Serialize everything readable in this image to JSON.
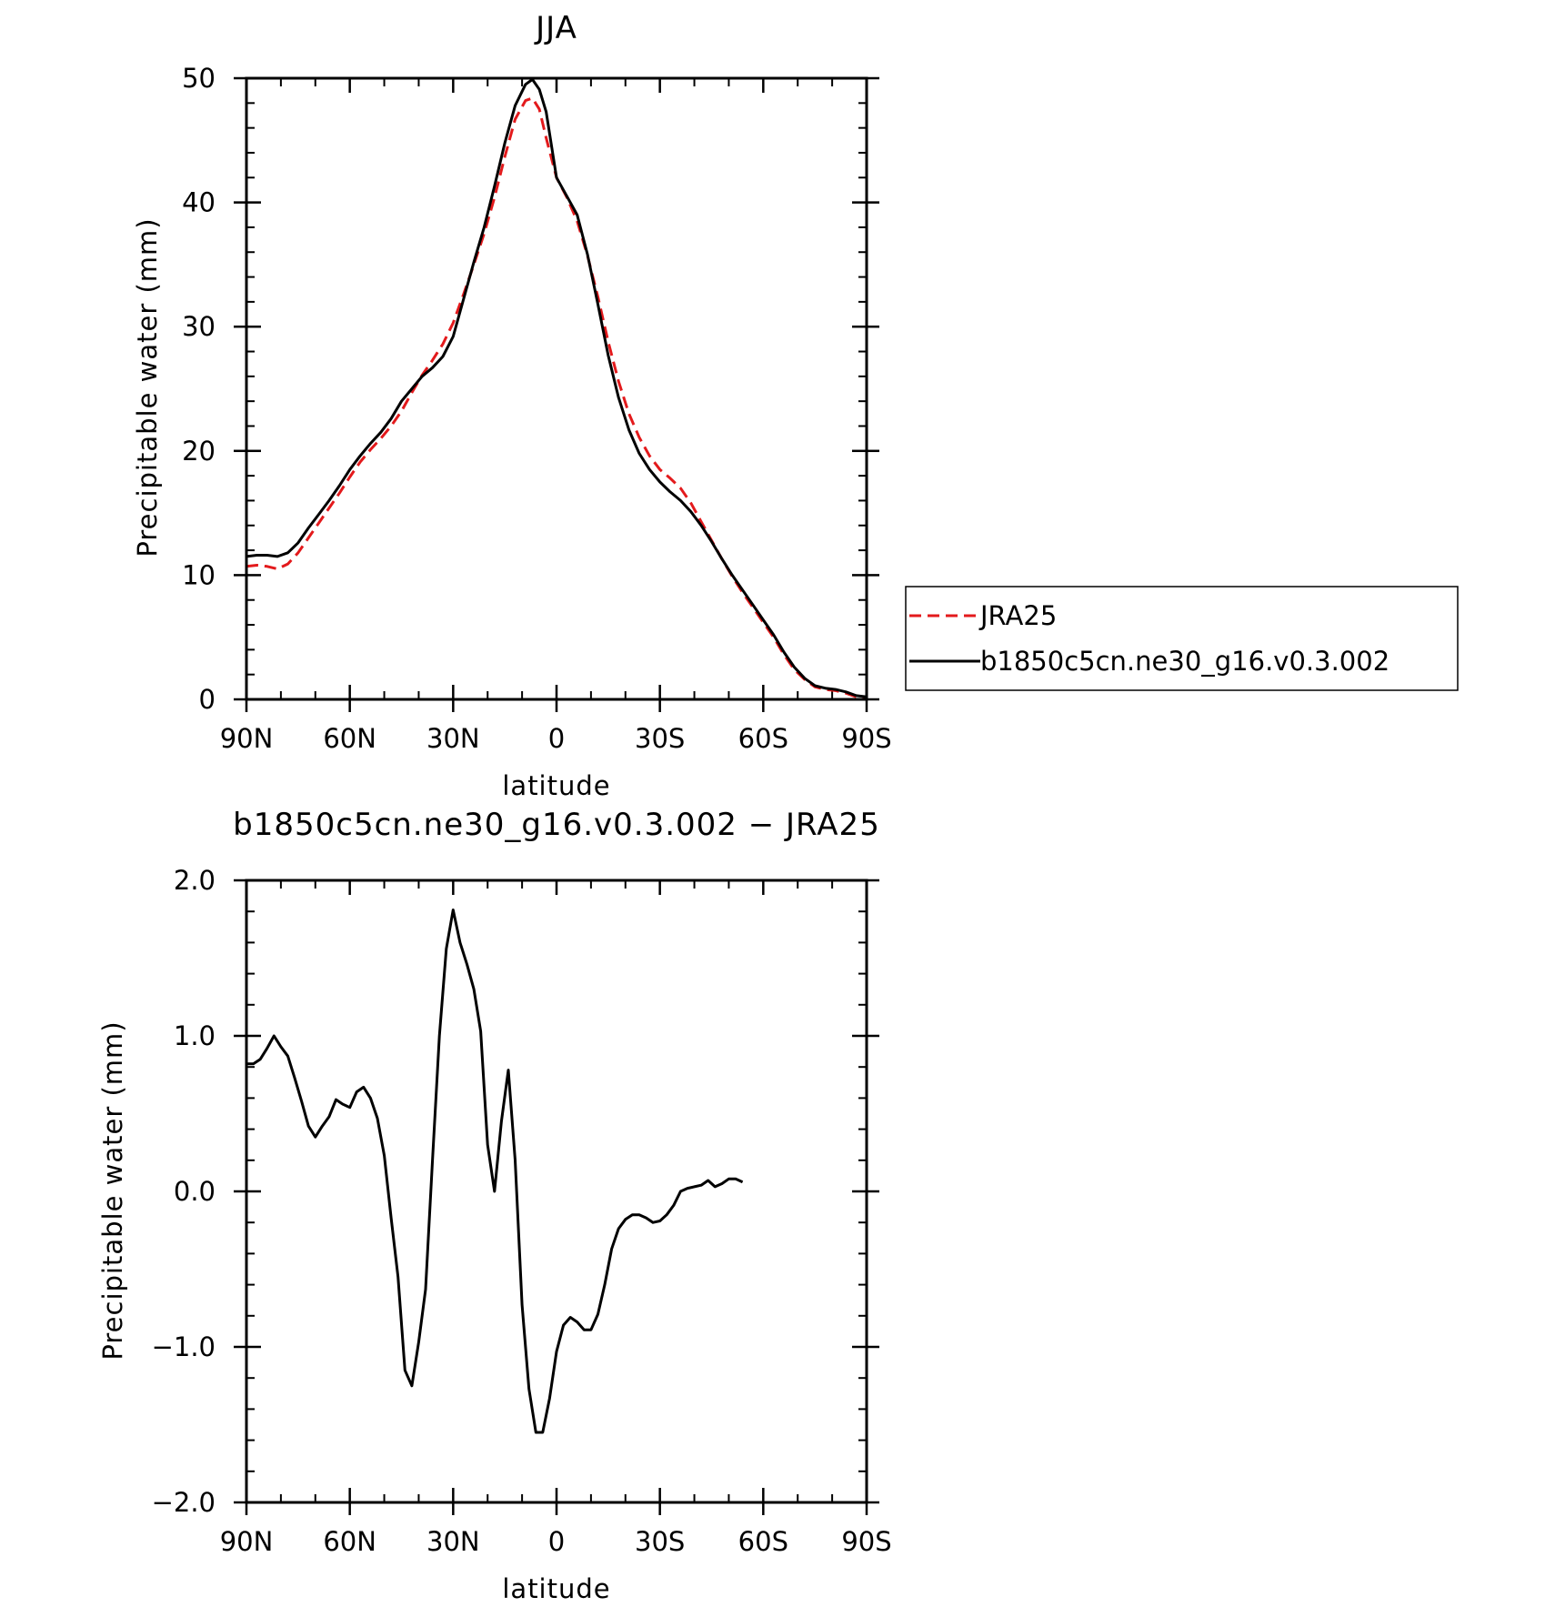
{
  "chart_data": [
    {
      "type": "line",
      "title": "JJA",
      "xlabel": "latitude",
      "ylabel": "Precipitable water (mm)",
      "ylim": [
        0,
        50
      ],
      "xlim": [
        90,
        -90
      ],
      "x_ticks": [
        90,
        60,
        30,
        0,
        -30,
        -60,
        -90
      ],
      "x_tick_labels": [
        "90N",
        "60N",
        "30N",
        "0",
        "30S",
        "60S",
        "90S"
      ],
      "y_ticks": [
        0,
        10,
        20,
        30,
        40,
        50
      ],
      "y_tick_labels": [
        "0",
        "10",
        "20",
        "30",
        "40",
        "50"
      ],
      "legend": "right",
      "series": [
        {
          "name": "JRA25",
          "color": "#e31a1c",
          "dash": "dashed",
          "points": [
            [
              90,
              10.7
            ],
            [
              87,
              10.8
            ],
            [
              84,
              10.7
            ],
            [
              81,
              10.5
            ],
            [
              78,
              10.9
            ],
            [
              75,
              11.8
            ],
            [
              72,
              13.0
            ],
            [
              69,
              14.2
            ],
            [
              66,
              15.4
            ],
            [
              63,
              16.6
            ],
            [
              60,
              17.9
            ],
            [
              57,
              19.1
            ],
            [
              54,
              20.1
            ],
            [
              51,
              21.0
            ],
            [
              48,
              22.0
            ],
            [
              45,
              23.2
            ],
            [
              42,
              24.7
            ],
            [
              39,
              26.1
            ],
            [
              36,
              27.3
            ],
            [
              33,
              28.6
            ],
            [
              30,
              30.3
            ],
            [
              27,
              32.6
            ],
            [
              24,
              35.0
            ],
            [
              21,
              37.5
            ],
            [
              18,
              40.4
            ],
            [
              15,
              43.7
            ],
            [
              12,
              46.7
            ],
            [
              9,
              48.2
            ],
            [
              7,
              48.4
            ],
            [
              5,
              47.5
            ],
            [
              3,
              45.2
            ],
            [
              0,
              42.0
            ],
            [
              -3,
              40.4
            ],
            [
              -6,
              38.5
            ],
            [
              -9,
              35.7
            ],
            [
              -12,
              32.4
            ],
            [
              -15,
              28.8
            ],
            [
              -18,
              25.6
            ],
            [
              -21,
              23.0
            ],
            [
              -24,
              21.1
            ],
            [
              -27,
              19.6
            ],
            [
              -30,
              18.5
            ],
            [
              -33,
              17.8
            ],
            [
              -36,
              17.0
            ],
            [
              -39,
              15.8
            ],
            [
              -42,
              14.3
            ],
            [
              -45,
              12.8
            ],
            [
              -48,
              11.3
            ],
            [
              -51,
              9.9
            ],
            [
              -54,
              8.6
            ],
            [
              -57,
              7.4
            ],
            [
              -60,
              6.2
            ],
            [
              -63,
              5.0
            ],
            [
              -66,
              3.6
            ],
            [
              -69,
              2.4
            ],
            [
              -72,
              1.6
            ],
            [
              -75,
              1.0
            ],
            [
              -78,
              0.8
            ],
            [
              -81,
              0.7
            ],
            [
              -84,
              0.5
            ],
            [
              -87,
              0.2
            ],
            [
              -90,
              0.1
            ]
          ]
        },
        {
          "name": "b1850c5cn.ne30_g16.v0.3.002",
          "color": "#000000",
          "dash": "solid",
          "points": [
            [
              90,
              11.5
            ],
            [
              87,
              11.6
            ],
            [
              84,
              11.6
            ],
            [
              81,
              11.5
            ],
            [
              78,
              11.8
            ],
            [
              75,
              12.6
            ],
            [
              72,
              13.8
            ],
            [
              69,
              14.9
            ],
            [
              66,
              16.0
            ],
            [
              63,
              17.2
            ],
            [
              60,
              18.5
            ],
            [
              57,
              19.6
            ],
            [
              54,
              20.6
            ],
            [
              51,
              21.5
            ],
            [
              48,
              22.6
            ],
            [
              45,
              24.0
            ],
            [
              42,
              25.0
            ],
            [
              39,
              26.0
            ],
            [
              36,
              26.7
            ],
            [
              33,
              27.6
            ],
            [
              30,
              29.2
            ],
            [
              27,
              32.2
            ],
            [
              24,
              35.2
            ],
            [
              21,
              38.0
            ],
            [
              18,
              41.3
            ],
            [
              15,
              44.8
            ],
            [
              12,
              47.8
            ],
            [
              9,
              49.5
            ],
            [
              7,
              49.9
            ],
            [
              5,
              49.1
            ],
            [
              3,
              47.3
            ],
            [
              0,
              42.0
            ],
            [
              -3,
              40.5
            ],
            [
              -6,
              39.0
            ],
            [
              -9,
              35.8
            ],
            [
              -12,
              31.8
            ],
            [
              -15,
              27.7
            ],
            [
              -18,
              24.3
            ],
            [
              -21,
              21.7
            ],
            [
              -24,
              19.8
            ],
            [
              -27,
              18.5
            ],
            [
              -30,
              17.5
            ],
            [
              -33,
              16.7
            ],
            [
              -36,
              16.0
            ],
            [
              -39,
              15.1
            ],
            [
              -42,
              14.0
            ],
            [
              -45,
              12.7
            ],
            [
              -48,
              11.3
            ],
            [
              -51,
              10.0
            ],
            [
              -54,
              8.8
            ],
            [
              -57,
              7.6
            ],
            [
              -60,
              6.4
            ],
            [
              -63,
              5.2
            ],
            [
              -66,
              3.8
            ],
            [
              -69,
              2.6
            ],
            [
              -72,
              1.7
            ],
            [
              -75,
              1.1
            ],
            [
              -78,
              0.9
            ],
            [
              -81,
              0.8
            ],
            [
              -84,
              0.6
            ],
            [
              -87,
              0.3
            ],
            [
              -90,
              0.2
            ]
          ]
        }
      ]
    },
    {
      "type": "line",
      "title": "b1850c5cn.ne30_g16.v0.3.002 − JRA25",
      "xlabel": "latitude",
      "ylabel": "Precipitable water (mm)",
      "ylim": [
        -2.0,
        2.0
      ],
      "xlim": [
        90,
        -90
      ],
      "x_ticks": [
        90,
        60,
        30,
        0,
        -30,
        -60,
        -90
      ],
      "x_tick_labels": [
        "90N",
        "60N",
        "30N",
        "0",
        "30S",
        "60S",
        "90S"
      ],
      "y_ticks": [
        -2.0,
        -1.0,
        0.0,
        1.0,
        2.0
      ],
      "y_tick_labels": [
        "−2.0",
        "−1.0",
        "0.0",
        "1.0",
        "2.0"
      ],
      "series": [
        {
          "color": "#000000",
          "dash": "solid",
          "points": [
            [
              90,
              0.82
            ],
            [
              88,
              0.82
            ],
            [
              86,
              0.85
            ],
            [
              84,
              0.92
            ],
            [
              82,
              1.0
            ],
            [
              80,
              0.93
            ],
            [
              78,
              0.87
            ],
            [
              76,
              0.73
            ],
            [
              74,
              0.58
            ],
            [
              72,
              0.42
            ],
            [
              70,
              0.35
            ],
            [
              68,
              0.42
            ],
            [
              66,
              0.48
            ],
            [
              64,
              0.59
            ],
            [
              62,
              0.56
            ],
            [
              60,
              0.54
            ],
            [
              58,
              0.64
            ],
            [
              56,
              0.67
            ],
            [
              54,
              0.6
            ],
            [
              52,
              0.47
            ],
            [
              50,
              0.23
            ],
            [
              48,
              -0.17
            ],
            [
              46,
              -0.55
            ],
            [
              44,
              -1.15
            ],
            [
              42,
              -1.25
            ],
            [
              40,
              -0.97
            ],
            [
              38,
              -0.63
            ],
            [
              36,
              0.2
            ],
            [
              34,
              1.0
            ],
            [
              32,
              1.56
            ],
            [
              30,
              1.81
            ],
            [
              28,
              1.6
            ],
            [
              26,
              1.46
            ],
            [
              24,
              1.3
            ],
            [
              22,
              1.03
            ],
            [
              20,
              0.3
            ],
            [
              18,
              0.0
            ],
            [
              16,
              0.45
            ],
            [
              14,
              0.78
            ],
            [
              12,
              0.2
            ],
            [
              10,
              -0.73
            ],
            [
              8,
              -1.27
            ],
            [
              6,
              -1.55
            ],
            [
              4,
              -1.55
            ],
            [
              2,
              -1.33
            ],
            [
              0,
              -1.03
            ],
            [
              -2,
              -0.86
            ],
            [
              -4,
              -0.81
            ],
            [
              -6,
              -0.84
            ],
            [
              -8,
              -0.89
            ],
            [
              -10,
              -0.89
            ],
            [
              -12,
              -0.79
            ],
            [
              -14,
              -0.6
            ],
            [
              -16,
              -0.37
            ],
            [
              -18,
              -0.24
            ],
            [
              -20,
              -0.18
            ],
            [
              -22,
              -0.15
            ],
            [
              -24,
              -0.15
            ],
            [
              -26,
              -0.17
            ],
            [
              -28,
              -0.2
            ],
            [
              -30,
              -0.19
            ],
            [
              -32,
              -0.15
            ],
            [
              -34,
              -0.09
            ],
            [
              -36,
              0.0
            ],
            [
              -38,
              0.02
            ],
            [
              -40,
              0.03
            ],
            [
              -42,
              0.04
            ],
            [
              -44,
              0.07
            ],
            [
              -46,
              0.03
            ],
            [
              -48,
              0.05
            ],
            [
              -50,
              0.08
            ],
            [
              -52,
              0.08
            ],
            [
              -54,
              0.06
            ]
          ]
        }
      ]
    }
  ]
}
